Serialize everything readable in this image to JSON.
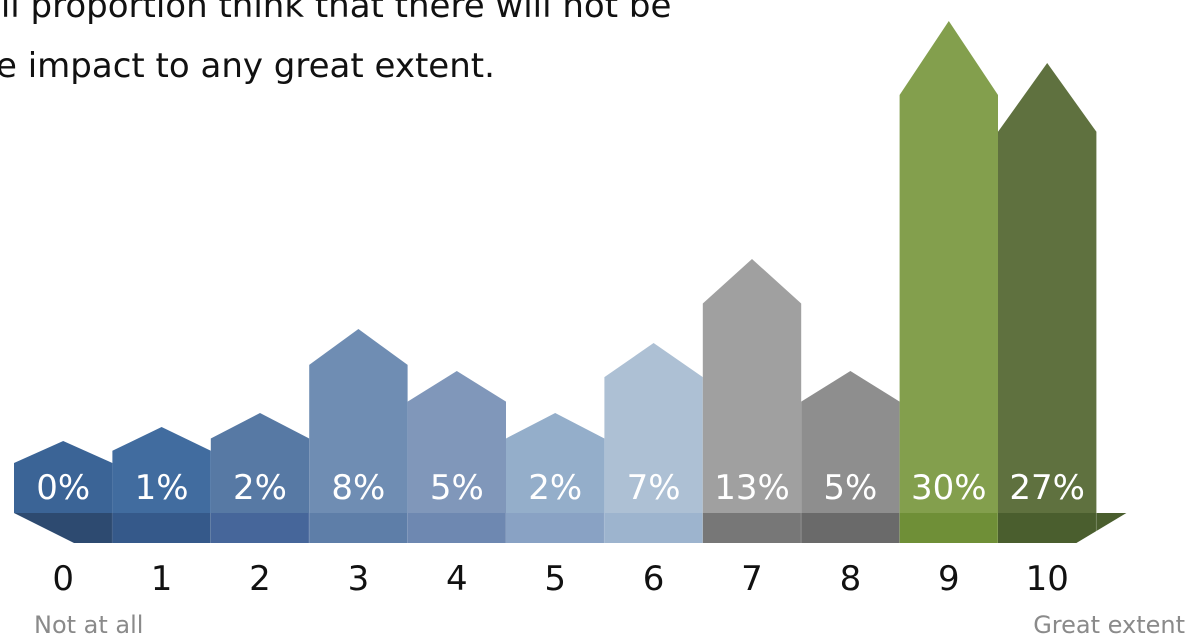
{
  "caption": {
    "line1": "all proportion think that there will not be",
    "line2": "e impact to any great extent."
  },
  "chart_data": {
    "type": "bar",
    "categories": [
      "0",
      "1",
      "2",
      "3",
      "4",
      "5",
      "6",
      "7",
      "8",
      "9",
      "10"
    ],
    "values": [
      0,
      1,
      2,
      8,
      5,
      2,
      7,
      13,
      5,
      30,
      27
    ],
    "labels": [
      "0%",
      "1%",
      "2%",
      "8%",
      "5%",
      "2%",
      "7%",
      "13%",
      "5%",
      "30%",
      "27%"
    ],
    "scale_start_label": "Not at all",
    "scale_end_label": "Great extent",
    "colors": {
      "front": [
        "#3b6496",
        "#416c9f",
        "#5779a4",
        "#6f8db3",
        "#8097ba",
        "#94aeca",
        "#adc0d4",
        "#a0a0a0",
        "#8e8e8e",
        "#839f4d",
        "#5f713f"
      ],
      "side": [
        "#2d4a70",
        "#35598a",
        "#46669a",
        "#5e7ea8",
        "#6e88b1",
        "#89a2c4",
        "#9db4ce",
        "#777777",
        "#6a6a6a",
        "#6f8f37",
        "#4a5e2e"
      ]
    }
  }
}
